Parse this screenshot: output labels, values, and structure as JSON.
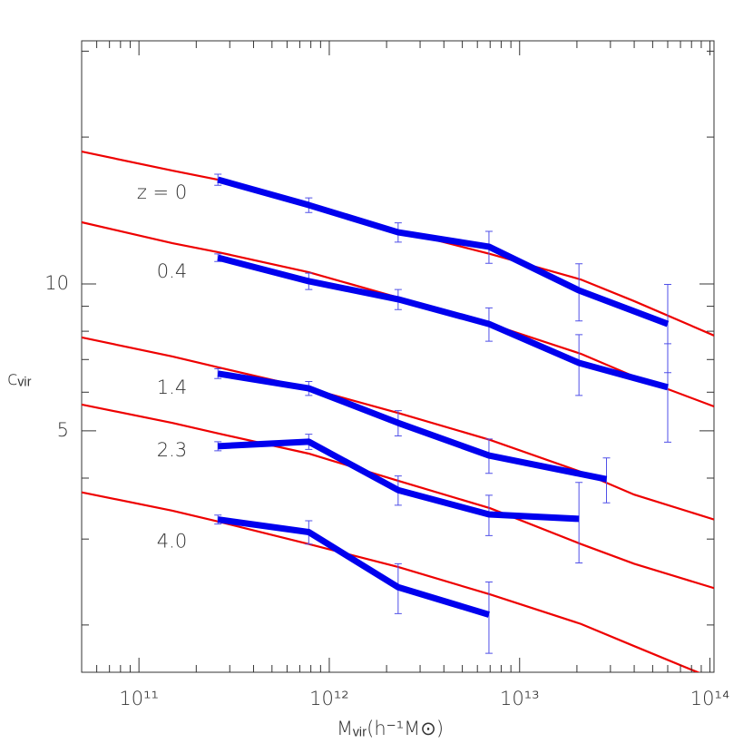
{
  "chart_data": {
    "type": "line",
    "log_x": true,
    "log_y": true,
    "xlabel": "Mᵥᵢᵣ(h⁻¹M⊙)",
    "ylabel": "cᵥᵢᵣ",
    "xlim": [
      50000000000.0,
      105000000000000.0
    ],
    "ylim": [
      1.6,
      31.5
    ],
    "xticks": [
      {
        "value": 100000000000.0,
        "label": "10¹¹"
      },
      {
        "value": 1000000000000.0,
        "label": "10¹²"
      },
      {
        "value": 10000000000000.0,
        "label": "10¹³"
      },
      {
        "value": 100000000000000.0,
        "label": "10¹⁴"
      }
    ],
    "x_minor_ticks": [
      60000000000.0,
      70000000000.0,
      80000000000.0,
      90000000000.0,
      200000000000.0,
      300000000000.0,
      400000000000.0,
      500000000000.0,
      600000000000.0,
      700000000000.0,
      800000000000.0,
      900000000000.0,
      2000000000000.0,
      3000000000000.0,
      4000000000000.0,
      5000000000000.0,
      6000000000000.0,
      7000000000000.0,
      8000000000000.0,
      9000000000000.0,
      20000000000000.0,
      30000000000000.0,
      40000000000000.0,
      50000000000000.0,
      60000000000000.0,
      70000000000000.0,
      80000000000000.0,
      90000000000000.0
    ],
    "yticks": [
      5,
      10
    ],
    "y_minor_ticks": [
      2,
      3,
      4,
      6,
      7,
      8,
      9,
      20,
      30
    ],
    "model_x": [
      50000000000.0,
      150000000000.0,
      260000000000.0,
      780000000000.0,
      2300000000000.0,
      7000000000000.0,
      21000000000000.0,
      40000000000000.0,
      105000000000000.0
    ],
    "models": [
      {
        "color": "#ee0000",
        "values": [
          18.68,
          17.07,
          16.36,
          14.58,
          12.87,
          11.52,
          10.21,
          9.22,
          7.84
        ]
      },
      {
        "color": "#ee0000",
        "values": [
          13.38,
          12.12,
          11.62,
          10.57,
          9.38,
          8.28,
          7.19,
          6.46,
          5.61
        ]
      },
      {
        "color": "#ee0000",
        "values": [
          7.77,
          7.1,
          6.75,
          6.11,
          5.44,
          4.79,
          4.12,
          3.7,
          3.29
        ]
      },
      {
        "color": "#ee0000",
        "values": [
          5.66,
          5.19,
          4.94,
          4.49,
          3.95,
          3.47,
          2.93,
          2.67,
          2.38
        ]
      },
      {
        "color": "#ee0000",
        "values": [
          3.74,
          3.43,
          3.26,
          2.93,
          2.63,
          2.31,
          2.01,
          1.81,
          1.55
        ]
      }
    ],
    "series": [
      {
        "name": "z = 0",
        "color": "#0000ee",
        "x": [
          260000000000.0,
          780000000000.0,
          2300000000000.0,
          6900000000000.0,
          20500000000000.0,
          60000000000000.0
        ],
        "values": [
          16.36,
          14.51,
          12.76,
          11.92,
          9.7,
          8.28
        ],
        "errors": [
          0.43,
          0.5,
          0.58,
          0.9,
          1.3,
          1.7
        ]
      },
      {
        "name": "0.4",
        "color": "#0000ee",
        "x": [
          260000000000.0,
          780000000000.0,
          2300000000000.0,
          6900000000000.0,
          20500000000000.0,
          60000000000000.0
        ],
        "values": [
          11.32,
          10.13,
          9.3,
          8.28,
          6.89,
          6.14
        ],
        "errors": [
          0.2,
          0.39,
          0.44,
          0.65,
          0.98,
          1.4
        ]
      },
      {
        "name": "1.4",
        "color": "#0000ee",
        "x": [
          260000000000.0,
          780000000000.0,
          2300000000000.0,
          6900000000000.0,
          28600000000000.0
        ],
        "values": [
          6.55,
          6.11,
          5.19,
          4.45,
          3.98
        ],
        "errors": [
          0.15,
          0.2,
          0.31,
          0.36,
          0.42
        ]
      },
      {
        "name": "2.3",
        "color": "#0000ee",
        "x": [
          260000000000.0,
          780000000000.0,
          2300000000000.0,
          6900000000000.0,
          20500000000000.0
        ],
        "values": [
          4.65,
          4.75,
          3.78,
          3.37,
          3.3
        ],
        "errors": [
          0.1,
          0.17,
          0.26,
          0.32,
          0.62
        ]
      },
      {
        "name": "4.0",
        "color": "#0000ee",
        "x": [
          260000000000.0,
          780000000000.0,
          2300000000000.0,
          6900000000000.0
        ],
        "values": [
          3.29,
          3.1,
          2.39,
          2.1
        ],
        "errors": [
          0.07,
          0.17,
          0.28,
          0.35
        ]
      }
    ]
  }
}
